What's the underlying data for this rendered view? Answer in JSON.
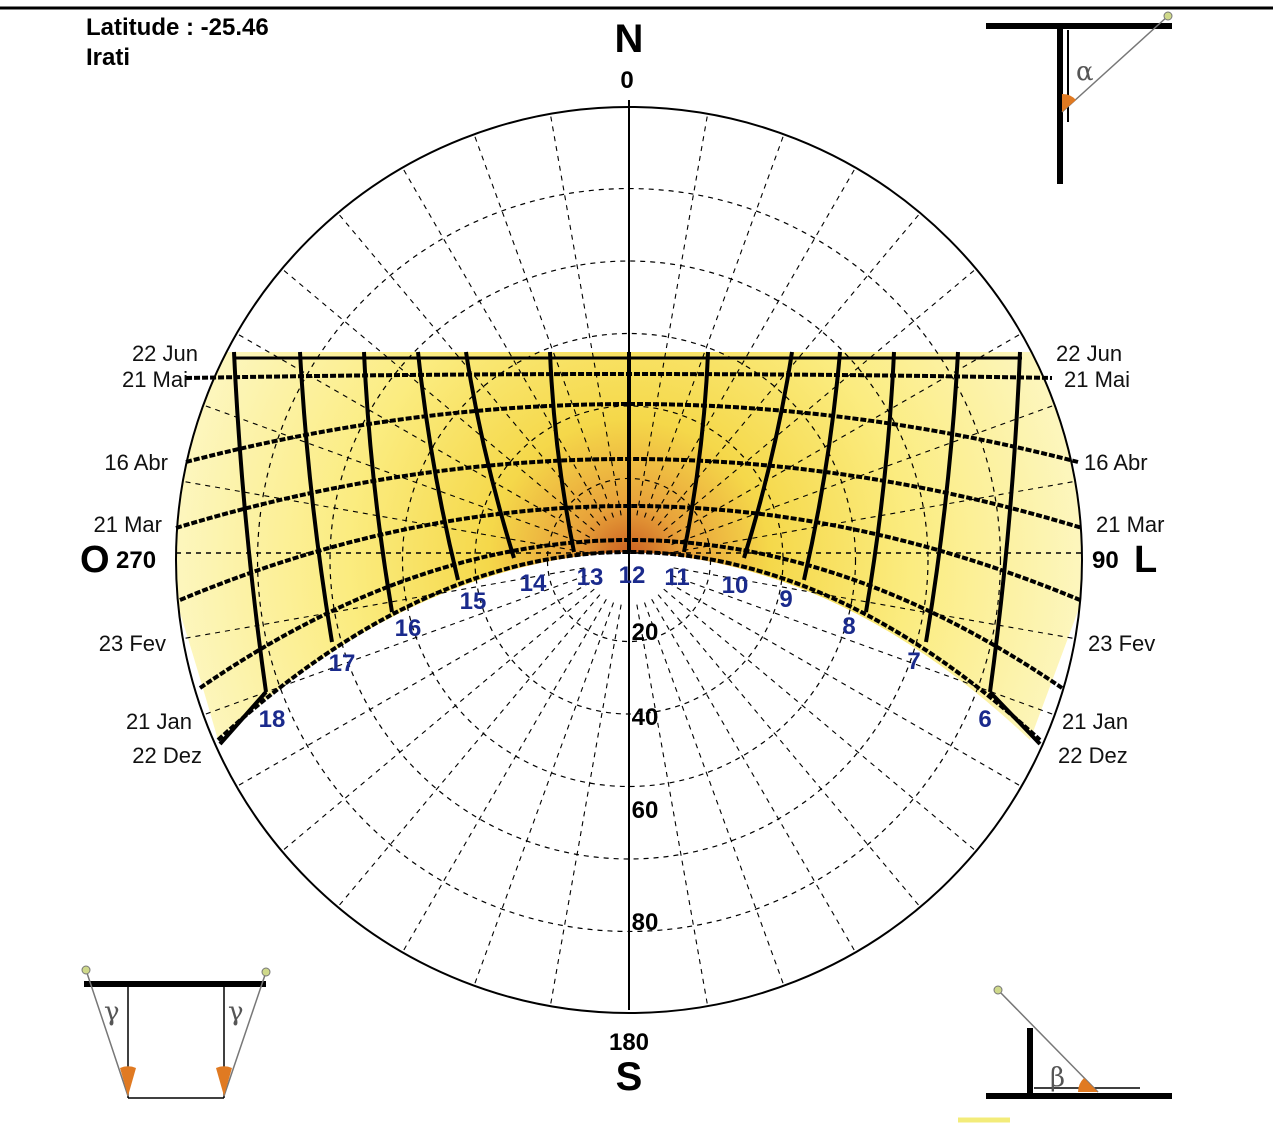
{
  "header": {
    "latitude": "Latitude : -25.46",
    "location": "Irati"
  },
  "cardinals": {
    "north": "N",
    "south": "S",
    "west": "O",
    "east": "L"
  },
  "bearings": {
    "north": "0",
    "south": "180",
    "west": "270",
    "east": "90"
  },
  "altitude_labels": [
    "20",
    "40",
    "60",
    "80"
  ],
  "date_labels_left": [
    "22 Jun",
    "21 Mai",
    "16 Abr",
    "21 Mar",
    "23 Fev",
    "21 Jan",
    "22 Dez"
  ],
  "date_labels_right": [
    "22 Jun",
    "21 Mai",
    "16 Abr",
    "21 Mar",
    "23 Fev",
    "21 Jan",
    "22 Dez"
  ],
  "hour_labels": [
    "18",
    "17",
    "16",
    "15",
    "14",
    "13",
    "12",
    "11",
    "10",
    "9",
    "8",
    "7",
    "6"
  ],
  "protractors": {
    "alpha": "α",
    "beta": "β",
    "gamma": "γ"
  },
  "colors": {
    "band_light": "#fdf6b0",
    "band_mid": "#f7e24a",
    "band_hot": "#d9742a",
    "hour_label": "#1a2a8c"
  }
}
